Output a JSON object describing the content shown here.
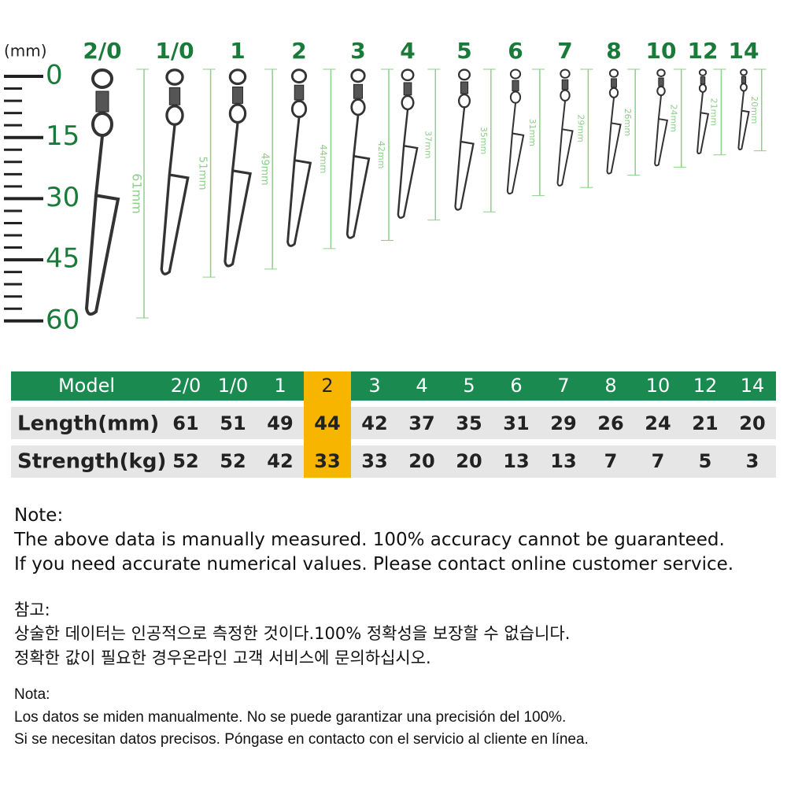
{
  "ruler": {
    "unit": "(mm)",
    "ticks": [
      0,
      15,
      30,
      45,
      60
    ]
  },
  "sizes": [
    {
      "label": "2/0",
      "dimension": "61mm"
    },
    {
      "label": "1/0",
      "dimension": "51mm"
    },
    {
      "label": "1",
      "dimension": "49mm"
    },
    {
      "label": "2",
      "dimension": "44mm"
    },
    {
      "label": "3",
      "dimension": "42mm"
    },
    {
      "label": "4",
      "dimension": "37mm"
    },
    {
      "label": "5",
      "dimension": "35mm"
    },
    {
      "label": "6",
      "dimension": "31mm"
    },
    {
      "label": "7",
      "dimension": "29mm"
    },
    {
      "label": "8",
      "dimension": "26mm"
    },
    {
      "label": "10",
      "dimension": "24mm"
    },
    {
      "label": "12",
      "dimension": "21mm"
    },
    {
      "label": "14",
      "dimension": "20mm"
    }
  ],
  "table": {
    "header": [
      "Model",
      "2/0",
      "1/0",
      "1",
      "2",
      "3",
      "4",
      "5",
      "6",
      "7",
      "8",
      "10",
      "12",
      "14"
    ],
    "rows": [
      [
        "Length(mm)",
        61,
        51,
        49,
        44,
        42,
        37,
        35,
        31,
        29,
        26,
        24,
        21,
        20
      ],
      [
        "Strength(kg)",
        52,
        52,
        42,
        33,
        33,
        20,
        20,
        13,
        13,
        7,
        7,
        5,
        3
      ]
    ],
    "highlight": "2"
  },
  "notes": {
    "english": [
      "Note:",
      "The above data is manually measured. 100% accuracy cannot be guaranteed.",
      "If you need accurate numerical values. Please contact online customer service."
    ],
    "korean": [
      "참고:",
      "상술한 데이터는 인공적으로 측정한 것이다.100% 정확성을 보장할 수 없습니다.",
      "정확한 값이 필요한 경우온라인 고객 서비스에 문의하십시오."
    ],
    "spanish": [
      "Nota:",
      "Los datos se miden manualmente. No se puede garantizar una precisión del 100%.",
      "Si se necesitan datos precisos. Póngase en contacto con el servicio al cliente en línea."
    ]
  }
}
